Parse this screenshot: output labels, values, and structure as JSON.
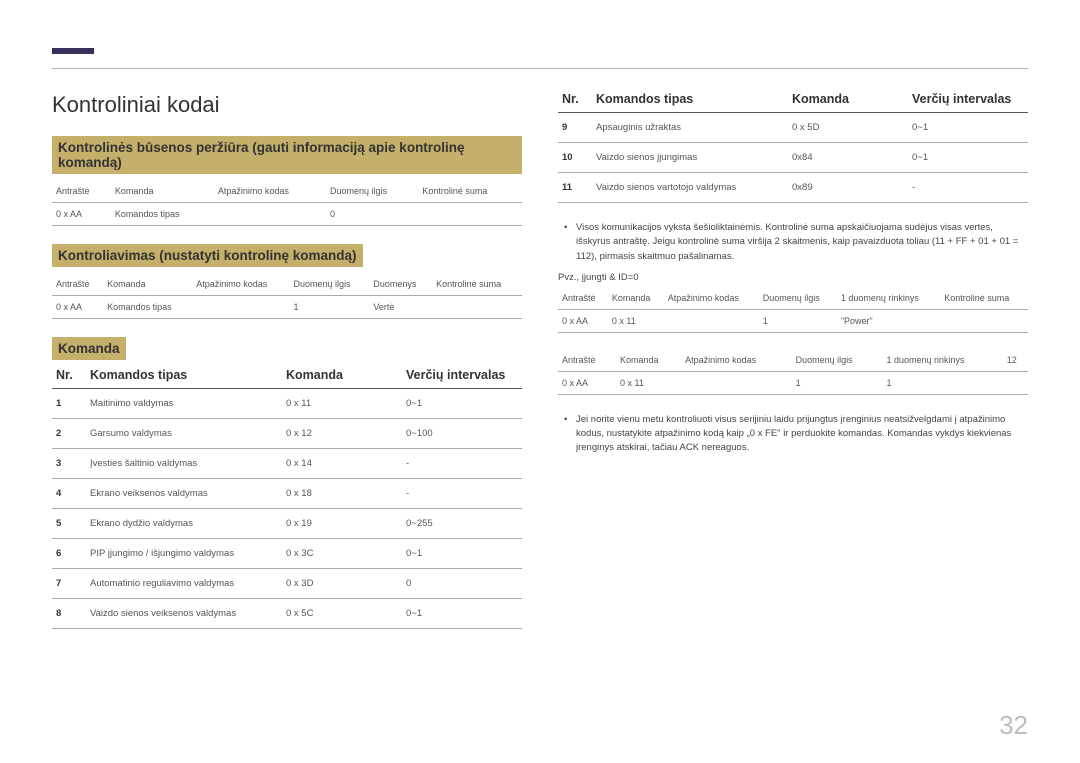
{
  "pageNumber": "32",
  "pageTitle": "Kontroliniai kodai",
  "accentColor": "#3a2f5a",
  "highlightColor": "#c4b06a",
  "left": {
    "section1": {
      "heading": "Kontrolinės būsenos peržiūra (gauti informaciją apie kontrolinę komandą)",
      "headers": [
        "Antraštė",
        "Komanda",
        "Atpažinimo kodas",
        "Duomenų ilgis",
        "Kontrolinė suma"
      ],
      "row": [
        "0 x AA",
        "Komandos tipas",
        "",
        "0",
        ""
      ]
    },
    "section2": {
      "heading": "Kontroliavimas (nustatyti kontrolinę komandą)",
      "headers": [
        "Antraštė",
        "Komanda",
        "Atpažinimo kodas",
        "Duomenų ilgis",
        "Duomenys",
        "Kontrolinė suma"
      ],
      "row": [
        "0 x AA",
        "Komandos tipas",
        "",
        "1",
        "Vertė",
        ""
      ]
    },
    "section3": {
      "heading": "Komanda",
      "cmdHeaders": {
        "nr": "Nr.",
        "type": "Komandos tipas",
        "cmd": "Komanda",
        "range": "Verčių intervalas"
      },
      "rows": [
        {
          "nr": "1",
          "type": "Maitinimo valdymas",
          "cmd": "0 x 11",
          "range": "0~1"
        },
        {
          "nr": "2",
          "type": "Garsumo valdymas",
          "cmd": "0 x 12",
          "range": "0~100"
        },
        {
          "nr": "3",
          "type": "Įvesties šaltinio valdymas",
          "cmd": "0 x 14",
          "range": "-"
        },
        {
          "nr": "4",
          "type": "Ekrano veiksenos valdymas",
          "cmd": "0 x 18",
          "range": "-"
        },
        {
          "nr": "5",
          "type": "Ekrano dydžio valdymas",
          "cmd": "0 x 19",
          "range": "0~255"
        },
        {
          "nr": "6",
          "type": "PIP įjungimo / išjungimo valdymas",
          "cmd": "0 x 3C",
          "range": "0~1"
        },
        {
          "nr": "7",
          "type": "Automatinio reguliavimo valdymas",
          "cmd": "0 x 3D",
          "range": "0"
        },
        {
          "nr": "8",
          "type": "Vaizdo sienos veiksenos valdymas",
          "cmd": "0 x 5C",
          "range": "0~1"
        }
      ]
    }
  },
  "right": {
    "cmdHeaders": {
      "nr": "Nr.",
      "type": "Komandos tipas",
      "cmd": "Komanda",
      "range": "Verčių intervalas"
    },
    "rows": [
      {
        "nr": "9",
        "type": "Apsauginis užraktas",
        "cmd": "0 x 5D",
        "range": "0~1"
      },
      {
        "nr": "10",
        "type": "Vaizdo sienos įjungimas",
        "cmd": "0x84",
        "range": "0~1"
      },
      {
        "nr": "11",
        "type": "Vaizdo sienos vartotojo valdymas",
        "cmd": "0x89",
        "range": "-"
      }
    ],
    "note1": "Visos komunikacijos vyksta šešioliktainėmis. Kontrolinė suma apskaičiuojama sudėjus visas vertes, išskyrus antraštę. Jeigu kontrolinė suma viršija 2 skaitmenis, kaip pavaizduota toliau (11 + FF + 01 + 01 = 112), pirmasis skaitmuo pašalinamas.",
    "exampleLabel": "Pvz., įjungti & ID=0",
    "ex1": {
      "headers": [
        "Antraštė",
        "Komanda",
        "Atpažinimo kodas",
        "Duomenų ilgis",
        "1 duomenų rinkinys",
        "Kontrolinė suma"
      ],
      "row": [
        "0 x AA",
        "0 x 11",
        "",
        "1",
        "\"Power\"",
        ""
      ]
    },
    "ex2": {
      "headers": [
        "Antraštė",
        "Komanda",
        "Atpažinimo kodas",
        "Duomenų ilgis",
        "1 duomenų rinkinys",
        "12"
      ],
      "row": [
        "0 x AA",
        "0 x 11",
        "",
        "1",
        "1",
        ""
      ]
    },
    "note2": "Jei norite vienu metu kontroliuoti visus serijiniu laidu prijungtus įrenginius neatsižvelgdami į atpažinimo kodus, nustatykite atpažinimo kodą kaip „0 x FE\" ir perduokite komandas. Komandas vykdys kiekvienas įrenginys atskirai, tačiau ACK nereaguos."
  }
}
